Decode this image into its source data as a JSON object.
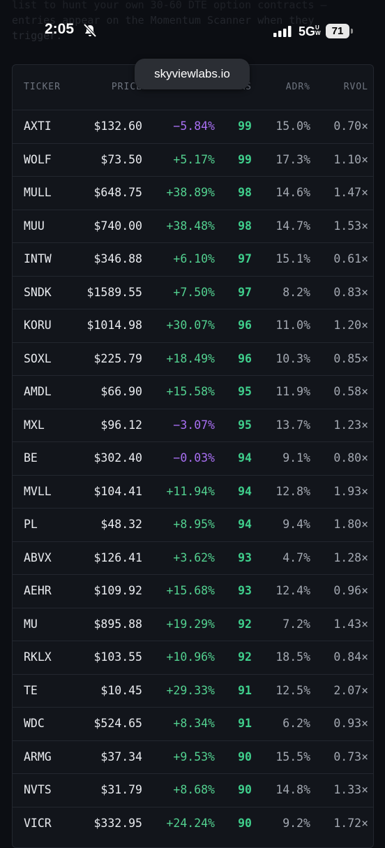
{
  "status_bar": {
    "time": "2:05",
    "network": "5G",
    "network_suffix": "UW",
    "battery": "71"
  },
  "background_text": [
    "list to hunt your own 30-60 DTE option contracts —",
    "entries appear on the Momentum Scanner when they",
    "trigger."
  ],
  "url_pill": "skyviewlabs.io",
  "table": {
    "headers": {
      "ticker": "TICKER",
      "price": "PRICE",
      "rs": "RS",
      "adr": "ADR%",
      "rvol": "RVOL"
    },
    "rows": [
      [
        "AXTI",
        "$132.60",
        "−5.84%",
        "99",
        "15.0%",
        "0.70×"
      ],
      [
        "WOLF",
        "$73.50",
        "+5.17%",
        "99",
        "17.3%",
        "1.10×"
      ],
      [
        "MULL",
        "$648.75",
        "+38.89%",
        "98",
        "14.6%",
        "1.47×"
      ],
      [
        "MUU",
        "$740.00",
        "+38.48%",
        "98",
        "14.7%",
        "1.53×"
      ],
      [
        "INTW",
        "$346.88",
        "+6.10%",
        "97",
        "15.1%",
        "0.61×"
      ],
      [
        "SNDK",
        "$1589.55",
        "+7.50%",
        "97",
        "8.2%",
        "0.83×"
      ],
      [
        "KORU",
        "$1014.98",
        "+30.07%",
        "96",
        "11.0%",
        "1.20×"
      ],
      [
        "SOXL",
        "$225.79",
        "+18.49%",
        "96",
        "10.3%",
        "0.85×"
      ],
      [
        "AMDL",
        "$66.90",
        "+15.58%",
        "95",
        "11.9%",
        "0.58×"
      ],
      [
        "MXL",
        "$96.12",
        "−3.07%",
        "95",
        "13.7%",
        "1.23×"
      ],
      [
        "BE",
        "$302.40",
        "−0.03%",
        "94",
        "9.1%",
        "0.80×"
      ],
      [
        "MVLL",
        "$104.41",
        "+11.94%",
        "94",
        "12.8%",
        "1.93×"
      ],
      [
        "PL",
        "$48.32",
        "+8.95%",
        "94",
        "9.4%",
        "1.80×"
      ],
      [
        "ABVX",
        "$126.41",
        "+3.62%",
        "93",
        "4.7%",
        "1.28×"
      ],
      [
        "AEHR",
        "$109.92",
        "+15.68%",
        "93",
        "12.4%",
        "0.96×"
      ],
      [
        "MU",
        "$895.88",
        "+19.29%",
        "92",
        "7.2%",
        "1.43×"
      ],
      [
        "RKLX",
        "$103.55",
        "+10.96%",
        "92",
        "18.5%",
        "0.84×"
      ],
      [
        "TE",
        "$10.45",
        "+29.33%",
        "91",
        "12.5%",
        "2.07×"
      ],
      [
        "WDC",
        "$524.65",
        "+8.34%",
        "91",
        "6.2%",
        "0.93×"
      ],
      [
        "ARMG",
        "$37.34",
        "+9.53%",
        "90",
        "15.5%",
        "0.73×"
      ],
      [
        "NVTS",
        "$31.79",
        "+8.68%",
        "90",
        "14.8%",
        "1.33×"
      ],
      [
        "VICR",
        "$332.95",
        "+24.24%",
        "90",
        "9.2%",
        "1.72×"
      ]
    ]
  }
}
